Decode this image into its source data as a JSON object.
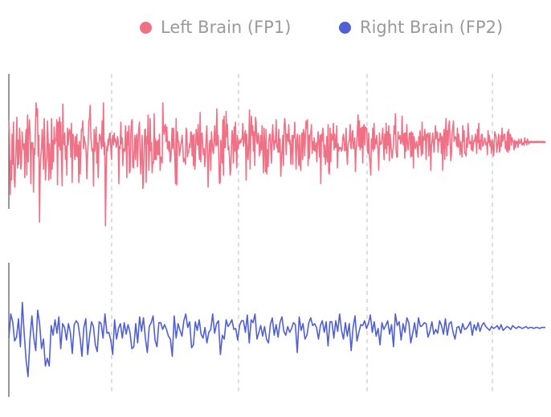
{
  "legend": {
    "position": "top-center",
    "items": [
      {
        "label": "Left Brain (FP1)",
        "color": "#f07086"
      },
      {
        "label": "Right Brain (FP2)",
        "color": "#5060d0"
      }
    ]
  },
  "chart_data": {
    "type": "line",
    "title": "",
    "xlabel": "",
    "ylabel": "",
    "grid": "vertical dashed lines at 4 positions",
    "layout": "two stacked panels sharing the x axis",
    "series": [
      {
        "name": "Left Brain (FP1)",
        "color": "#f07086",
        "panel": 1,
        "values": [
          0.32,
          0.18,
          -0.3,
          -0.02,
          -0.18,
          0.2,
          -0.05,
          0.3,
          -0.17,
          -0.24,
          -0.04,
          0.12,
          0.34,
          -0.08,
          0.15,
          -0.05,
          0.25,
          0.14,
          -0.09,
          -0.02,
          0.22,
          0.12,
          0.07,
          0.12,
          -0.16,
          0.14,
          0.24,
          -0.14,
          0.36,
          -0.03,
          0.22,
          0.32,
          0.19,
          -0.21,
          0.13,
          0.08,
          0.13,
          -0.28,
          0.08,
          0.03,
          0.28,
          0.46,
          0.35,
          0.41,
          0.02,
          0.19,
          -0.53,
          -0.08,
          0.01,
          0.08,
          0.24,
          0.12,
          -0.09,
          0.33,
          0.13,
          -0.18,
          -0.04,
          0.0,
          0.31,
          0.14,
          -0.18,
          0.12,
          -0.03,
          -0.17,
          0.33,
          -0.09,
          0.15,
          -0.03,
          0.26,
          0.12,
          0.15,
          0.15,
          0.32,
          -0.22,
          0.3,
          0.1,
          0.34,
          0.07,
          0.3,
          -0.02,
          -0.23,
          0.45,
          0.14,
          0.11,
          0.21,
          -0.01,
          0.1,
          -0.14,
          0.25,
          0.11,
          0.2,
          0.24,
          0.22,
          0.01,
          0.29,
          -0.2,
          0.2,
          0.18,
          0.09,
          -0.01,
          0.18,
          0.02,
          0.2,
          0.01,
          0.11,
          -0.2,
          0.14,
          -0.13,
          0.05,
          0.24,
          0.23,
          0.31,
          0.08,
          0.18,
          0.14,
          0.12,
          0.04,
          -0.17,
          0.01,
          0.12,
          0.31,
          0.33,
          0.44,
          0.19,
          0.1,
          0.06,
          0.08,
          -0.23,
          0.24,
          0.06,
          0.17,
          0.26,
          -0.04,
          0.13,
          -0.16,
          0.08,
          0.2,
          0.19,
          0.14,
          0.08,
          0.31,
          0.1,
          0.46,
          0.03,
          0.13,
          -0.56,
          -0.12,
          0.1,
          0.06,
          0.16,
          0.11,
          0.2,
          0.21,
          0.08,
          -0.01,
          0.15,
          0.19,
          0.11,
          0.21,
          0.14,
          0.16,
          0.09,
          0.11,
          0.18,
          0.15,
          -0.21,
          0.1,
          0.08,
          0.3,
          0.12,
          0.17,
          -0.06,
          0.08,
          0.06,
          0.06,
          0.27,
          0.16,
          -0.16,
          0.22,
          0.11,
          0.27,
          -0.12,
          -0.1,
          0.21,
          0.3,
          0.32,
          -0.07,
          -0.08,
          0.06,
          0.19,
          -0.01,
          0.16,
          0.2,
          -0.07,
          0.13,
          0.24,
          0.3,
          0.02,
          -0.13,
          0.05,
          0.19,
          -0.25,
          -0.2,
          0.1,
          0.24,
          0.24,
          -0.2,
          0.18,
          0.12,
          0.36,
          -0.1,
          0.06,
          0.33,
          0.06,
          0.13,
          -0.12,
          -0.03,
          -0.04,
          0.37,
          -0.01,
          0.16,
          -0.01,
          0.14,
          0.03,
          0.15,
          0.03,
          0.2,
          -0.1,
          0.01,
          0.01,
          -0.04,
          0.46,
          0.24,
          0.2,
          0.27,
          0.28,
          0.14,
          0.26,
          0.08,
          0.14,
          0.06,
          0.14,
          -0.03,
          -0.01,
          0.11,
          0.25,
          0.08,
          0.25,
          0.1,
          0.01,
          -0.21,
          0.33,
          -0.22,
          0.22,
          0.14,
          0.14,
          0.02,
          0.07,
          0.11,
          0.14,
          0.19,
          0.09,
          -0.03,
          -0.02,
          0.0,
          -0.05,
          0.25,
          0.22,
          0.01,
          0.05,
          0.05,
          0.12,
          0.09,
          0.22,
          0.21,
          0.02,
          0.19,
          -0.06,
          0.2,
          -0.09,
          -0.01,
          0.24,
          0.18,
          0.11,
          0.28,
          0.08,
          -0.01,
          0.38,
          -0.03,
          0.2,
          0.21,
          0.09,
          0.03,
          0.08,
          -0.07,
          0.02,
          0.17,
          0.27,
          0.06,
          -0.24,
          -0.01,
          0.12,
          0.15,
          -0.1,
          0.22,
          0.13,
          0.06,
          0.04,
          0.18,
          0.27,
          0.12,
          0.1,
          0.41,
          0.11,
          0.19,
          0.02,
          -0.21,
          -0.2,
          0.15,
          0.08,
          -0.04,
          0.32,
          -0.14,
          0.35,
          0.09,
          0.09,
          0.39,
          0.18,
          0.28,
          0.07,
          0.1,
          0.01,
          -0.14,
          -0.1,
          0.11,
          0.23,
          0.17,
          -0.04,
          0.26,
          0.06,
          0.3,
          0.07,
          -0.08,
          0.19,
          0.08,
          0.14,
          0.12,
          0.15,
          0.13,
          0.16,
          0.16,
          0.29,
          0.1,
          0.13,
          0.21,
          0.23,
          -0.18,
          0.2,
          0.04,
          -0.01,
          0.13,
          0.4,
          -0.09,
          0.23,
          0.35,
          0.19,
          0.27,
          0.06,
          0.22,
          -0.06,
          0.34,
          0.29,
          0.14,
          0.12,
          0.21,
          0.18,
          0.02,
          0.05,
          0.19,
          0.07,
          0.27,
          0.08,
          -0.12,
          0.25,
          0.11,
          -0.11,
          0.24,
          -0.13,
          0.07,
          -0.07,
          0.13,
          0.2,
          0.2,
          0.07,
          -0.04,
          0.19,
          0.28,
          0.14,
          0.07,
          0.15,
          0.13,
          0.32,
          0.09,
          0.12,
          0.05,
          0.24,
          0.05,
          0.16,
          -0.15,
          -0.02,
          0.07,
          0.19,
          -0.06,
          0.26,
          0.33,
          0.26,
          0.03,
          0.2,
          0.2,
          0.14,
          0.28,
          0.12,
          0.15,
          -0.05,
          0.09,
          0.19,
          -0.05,
          0.19,
          0.17,
          0.3,
          0.13,
          -0.09,
          0.15,
          0.2,
          0.07,
          -0.06,
          0.19,
          -0.04,
          -0.1,
          0.19,
          0.21,
          -0.01,
          0.24,
          0.19,
          0.02,
          0.2,
          0.31,
          0.25,
          0.32,
          -0.06,
          0.19,
          0.0,
          0.2,
          0.2,
          0.28,
          0.04,
          0.14,
          0.07,
          0.17,
          0.06,
          0.06,
          0.13,
          -0.03,
          0.11,
          0.22,
          0.12,
          0.01,
          0.19,
          -0.21,
          0.2,
          0.14,
          0.25,
          0.18,
          0.01,
          0.11,
          -0.05,
          0.02,
          0.18,
          -0.03,
          0.28,
          -0.12,
          -0.13,
          0.25,
          -0.03,
          0.2,
          0.15,
          0.16,
          0.29,
          0.07,
          0.2,
          0.09,
          0.09,
          0.27,
          -0.08,
          0.12,
          0.06,
          0.09,
          0.08,
          0.09,
          0.06,
          0.07,
          0.16,
          0.2,
          0.15,
          0.06,
          0.07,
          0.25,
          0.05,
          -0.05,
          0.11,
          0.14,
          0.15,
          0.28,
          0.09,
          0.08,
          0.21,
          0.23,
          0.08,
          0.09,
          0.17,
          -0.11,
          0.05,
          0.13,
          0.24,
          0.36,
          0.1,
          0.31,
          0.07,
          0.25,
          0.09,
          0.26,
          -0.04,
          0.26,
          0.28,
          0.11,
          0.26,
          0.25,
          0.25,
          0.06,
          0.04,
          0.21,
          0.01,
          -0.04,
          -0.14,
          0.16,
          0.08,
          0.25,
          0.06,
          0.29,
          0.08,
          0.16,
          0.12,
          0.19,
          0.1,
          0.08,
          -0.1,
          0.21,
          0.11,
          0.13,
          0.12,
          0.18,
          0.25,
          0.11,
          -0.01,
          0.2,
          0.08,
          0.29,
          0.04,
          0.22,
          0.11,
          0.27,
          -0.02,
          0.2,
          0.13,
          0.06,
          0.0,
          0.06,
          0.1,
          0.27,
          0.2,
          0.37,
          0.07,
          0.01,
          0.01,
          0.22,
          0.16,
          0.16,
          0.19,
          0.12,
          0.13,
          0.35,
          0.15,
          0.11,
          0.21,
          0.0,
          0.21,
          0.06,
          0.28,
          0.14,
          0.07,
          0.14,
          0.21,
          0.21,
          0.01,
          0.22,
          0.02,
          0.21,
          -0.08,
          0.18,
          0.12,
          0.08,
          0.12,
          0.14,
          0.07,
          0.01,
          0.18,
          0.11,
          0.23,
          0.11,
          0.02,
          0.3,
          0.04,
          0.18,
          0.15,
          0.24,
          0.19,
          -0.01,
          0.2,
          0.18,
          0.21,
          0.02,
          0.18,
          0.21,
          -0.1,
          0.09,
          0.14,
          0.21,
          0.13,
          0.05,
          0.16,
          0.27,
          0.16,
          0.22,
          0.21,
          0.05,
          0.16,
          0.14,
          0.21,
          0.19,
          0.04,
          0.18,
          -0.1,
          0.16,
          0.24,
          -0.01,
          0.2,
          0.33,
          0.02,
          0.23,
          0.11,
          0.27,
          0.31,
          0.16,
          -0.02,
          0.03,
          0.21,
          0.25,
          0.31,
          0.14,
          0.17,
          0.18,
          0.16,
          0.1,
          0.25,
          0.09,
          0.2,
          0.12,
          0.03,
          0.14,
          0.08,
          0.01,
          0.27,
          0.14,
          0.23,
          0.04,
          0.04,
          0.02,
          0.17,
          0.09,
          0.29,
          0.2,
          0.12,
          0.13,
          0.14,
          0.07,
          0.19,
          0.06,
          0.11,
          0.15,
          0.14,
          0.2,
          0.16,
          0.04,
          0.24,
          0.13,
          0.29,
          0.08,
          0.15,
          0.07,
          0.19,
          0.2,
          0.1,
          0.11,
          0.14,
          0.17,
          0.14,
          0.11,
          0.13,
          0.03,
          0.23,
          0.13,
          0.19,
          0.1,
          0.15,
          0.04,
          0.13,
          0.15,
          0.02,
          0.06,
          0.22,
          0.2,
          0.18,
          0.05,
          0.1,
          0.15,
          0.2,
          0.05,
          0.07,
          0.19,
          0.1,
          0.25,
          0.14,
          0.16,
          0.2,
          0.2,
          0.08,
          0.14,
          0.06,
          0.22,
          0.05,
          0.24,
          0.07,
          0.2,
          0.19,
          0.11,
          0.17,
          0.14,
          0.14,
          0.07,
          0.15,
          0.09,
          0.14,
          0.12,
          0.14,
          0.09,
          0.16,
          0.13,
          0.12,
          0.14,
          0.16,
          0.11,
          0.12,
          0.13,
          0.11,
          0.17,
          0.13,
          0.14,
          0.11,
          0.16,
          0.14,
          0.12,
          0.14,
          0.13,
          0.14,
          0.13,
          0.14,
          0.13,
          0.14,
          0.13,
          0.14,
          0.13,
          0.14,
          0.13,
          0.14,
          0.13,
          0.14,
          0.13,
          0.14,
          0.13,
          0.14,
          0.13,
          0.14,
          0.13,
          0.14,
          0.13,
          0.14
        ]
      },
      {
        "name": "Right Brain (FP2)",
        "color": "#5060d0",
        "panel": 2,
        "values": [
          0.05,
          0.3,
          0.22,
          0.02,
          0.06,
          0.25,
          -0.04,
          0.42,
          0.09,
          -0.18,
          -0.35,
          0.04,
          0.28,
          0.05,
          -0.08,
          0.34,
          0.2,
          -0.06,
          0.04,
          -0.24,
          -0.16,
          -0.24,
          0.18,
          0.08,
          0.24,
          0.1,
          0.27,
          -0.06,
          0.2,
          0.16,
          0.03,
          0.2,
          0.11,
          -0.11,
          0.19,
          0.23,
          0.2,
          0.06,
          -0.14,
          0.16,
          0.25,
          -0.12,
          0.08,
          0.22,
          0.17,
          -0.02,
          -0.09,
          0.22,
          0.2,
          0.05,
          0.3,
          0.1,
          0.11,
          0.03,
          -0.12,
          0.24,
          0.04,
          0.15,
          0.2,
          0.05,
          0.21,
          0.09,
          0.19,
          0.11,
          -0.06,
          -0.04,
          0.2,
          0.0,
          0.27,
          0.12,
          0.26,
          0.05,
          -0.1,
          0.17,
          0.21,
          0.28,
          0.03,
          -0.04,
          0.21,
          0.21,
          0.14,
          0.19,
          0.14,
          0.07,
          0.04,
          -0.14,
          0.28,
          0.05,
          0.2,
          0.13,
          0.07,
          0.23,
          0.3,
          0.16,
          0.22,
          -0.05,
          -0.02,
          0.22,
          0.13,
          0.24,
          0.09,
          0.05,
          0.16,
          0.0,
          0.11,
          0.14,
          0.3,
          0.1,
          0.2,
          0.23,
          -0.12,
          0.08,
          0.04,
          0.24,
          0.17,
          0.2,
          0.24,
          0.14,
          0.15,
          0.03,
          0.18,
          0.23,
          0.23,
          0.11,
          0.29,
          0.0,
          0.24,
          0.21,
          0.3,
          0.04,
          0.11,
          0.18,
          0.07,
          0.17,
          0.04,
          0.0,
          0.19,
          0.26,
          0.08,
          0.19,
          0.06,
          0.21,
          0.27,
          0.12,
          0.08,
          0.17,
          0.11,
          0.15,
          0.21,
          0.19,
          -0.1,
          0.27,
          0.13,
          0.2,
          0.04,
          0.08,
          0.21,
          0.26,
          0.18,
          0.2,
          0.16,
          0.04,
          0.18,
          0.23,
          0.11,
          0.22,
          -0.03,
          0.22,
          0.22,
          0.05,
          0.23,
          0.12,
          0.3,
          0.13,
          0.04,
          0.21,
          0.07,
          0.2,
          -0.08,
          0.16,
          0.28,
          0.02,
          0.11,
          0.19,
          0.18,
          0.23,
          0.15,
          0.2,
          0.29,
          0.11,
          0.22,
          0.07,
          0.15,
          -0.02,
          0.21,
          0.14,
          0.18,
          0.23,
          0.09,
          0.19,
          -0.04,
          0.3,
          0.18,
          0.22,
          0.03,
          0.2,
          0.11,
          0.26,
          0.21,
          0.0,
          0.1,
          0.21,
          0.06,
          0.26,
          0.17,
          0.18,
          0.21,
          0.2,
          0.06,
          0.12,
          0.22,
          0.09,
          0.14,
          0.1,
          0.23,
          0.18,
          0.09,
          0.25,
          0.08,
          0.2,
          0.22,
          0.11,
          0.04,
          0.16,
          0.17,
          0.1,
          0.2,
          0.14,
          0.15,
          0.18,
          0.22,
          0.08,
          0.19,
          0.13,
          0.21,
          0.12,
          0.18,
          0.21,
          0.17,
          0.15,
          0.13,
          0.17,
          0.15,
          0.16,
          0.18,
          0.14,
          0.19,
          0.13,
          0.15,
          0.17,
          0.16,
          0.14,
          0.18,
          0.16,
          0.15,
          0.17,
          0.16,
          0.15,
          0.16,
          0.17,
          0.15,
          0.16,
          0.16,
          0.15,
          0.16,
          0.16,
          0.15,
          0.16,
          0.16,
          0.16
        ]
      }
    ]
  }
}
